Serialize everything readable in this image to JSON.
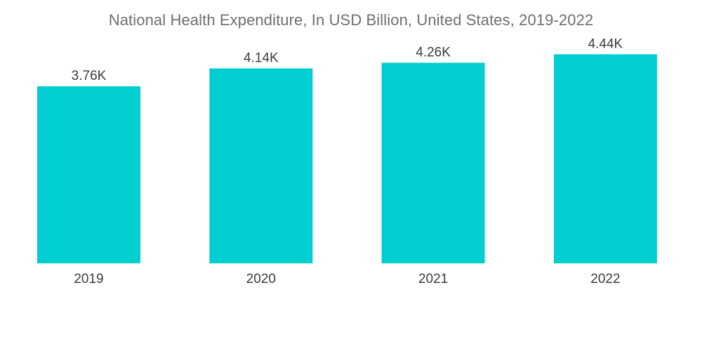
{
  "chart_data": {
    "type": "bar",
    "title": "National Health Expenditure, In USD Billion, United States, 2019-2022",
    "categories": [
      "2019",
      "2020",
      "2021",
      "2022"
    ],
    "values": [
      3760,
      4140,
      4260,
      4440
    ],
    "value_labels": [
      "3.76K",
      "4.14K",
      "4.26K",
      "4.44K"
    ],
    "xlabel": "",
    "ylabel": "",
    "ylim": [
      0,
      4700
    ],
    "grid": false,
    "legend": "none",
    "bar_color": "#00ced1"
  }
}
